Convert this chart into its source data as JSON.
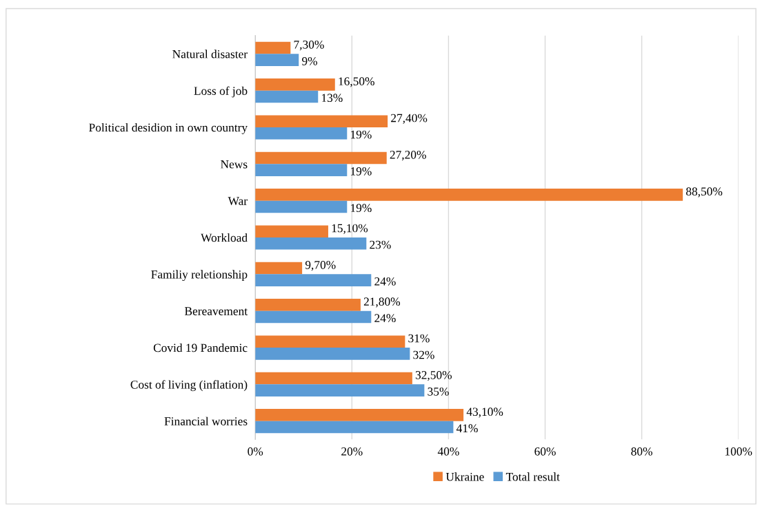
{
  "chart_data": {
    "type": "bar",
    "orientation": "horizontal",
    "categories": [
      "Natural disaster",
      "Loss of job",
      "Political desidion in own country",
      "News",
      "War",
      "Workload",
      "Familiy reletionship",
      "Bereavement",
      "Covid 19 Pandemic",
      "Cost of living (inflation)",
      "Financial worries"
    ],
    "series": [
      {
        "name": "Ukraine",
        "color": "#ed7d31",
        "values": [
          7.3,
          16.5,
          27.4,
          27.2,
          88.5,
          15.1,
          9.7,
          21.8,
          31,
          32.5,
          43.1
        ],
        "value_labels": [
          "7,30%",
          "16,50%",
          "27,40%",
          "27,20%",
          "88,50%",
          "15,10%",
          "9,70%",
          "21,80%",
          "31%",
          "32,50%",
          "43,10%"
        ]
      },
      {
        "name": "Total result",
        "color": "#5b9bd5",
        "values": [
          9,
          13,
          19,
          19,
          19,
          23,
          24,
          24,
          32,
          35,
          41
        ],
        "value_labels": [
          "9%",
          "13%",
          "19%",
          "19%",
          "19%",
          "23%",
          "24%",
          "24%",
          "32%",
          "35%",
          "41%"
        ]
      }
    ],
    "xlim": [
      0,
      100
    ],
    "xticks": [
      {
        "value": 0,
        "label": "0%"
      },
      {
        "value": 20,
        "label": "20%"
      },
      {
        "value": 40,
        "label": "40%"
      },
      {
        "value": 60,
        "label": "60%"
      },
      {
        "value": 80,
        "label": "80%"
      },
      {
        "value": 100,
        "label": "100%"
      }
    ],
    "grid": "x",
    "legend": "bottom"
  }
}
